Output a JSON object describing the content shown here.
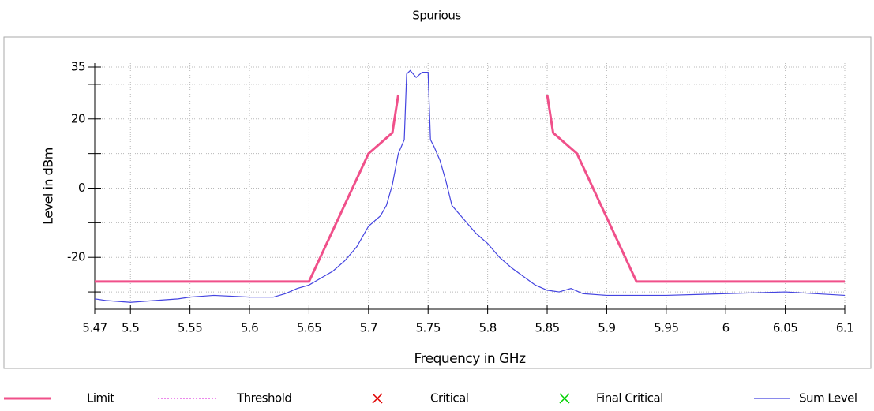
{
  "chart_data": {
    "type": "line",
    "title": "Spurious",
    "x_label": "Frequency in GHz",
    "y_label": "Level in dBm",
    "xlim": [
      5.47,
      6.1
    ],
    "xticks": [
      5.47,
      5.5,
      5.55,
      5.6,
      5.65,
      5.7,
      5.75,
      5.8,
      5.85,
      5.9,
      5.95,
      6,
      6.05,
      6.1
    ],
    "ylim": [
      -35,
      35
    ],
    "yticks": [
      35,
      20,
      0,
      -20
    ],
    "minor_yticks": [
      30,
      10,
      -10,
      -30
    ],
    "grid": true,
    "legend": "bottom",
    "series": [
      {
        "name": "Limit",
        "color": "#f0508a",
        "style": "solid",
        "x": [
          5.47,
          5.65,
          5.7,
          5.72,
          5.725,
          null,
          5.85,
          5.855,
          5.875,
          5.925,
          6.1
        ],
        "values": [
          -27,
          -27,
          10,
          16,
          27,
          null,
          27,
          16,
          10,
          -27,
          -27
        ]
      },
      {
        "name": "Threshold",
        "color": "#e040e0",
        "style": "dotted",
        "x": [],
        "values": []
      },
      {
        "name": "Critical",
        "color": "#e00000",
        "style": "marker",
        "x": [],
        "values": []
      },
      {
        "name": "Final Critical",
        "color": "#00d000",
        "style": "marker",
        "x": [],
        "values": []
      },
      {
        "name": "Sum Level",
        "color": "#4444e0",
        "style": "thin",
        "x": [
          5.47,
          5.48,
          5.5,
          5.52,
          5.54,
          5.55,
          5.57,
          5.6,
          5.62,
          5.63,
          5.64,
          5.65,
          5.66,
          5.67,
          5.68,
          5.69,
          5.7,
          5.71,
          5.715,
          5.72,
          5.725,
          5.73,
          5.732,
          5.735,
          5.74,
          5.745,
          5.75,
          5.752,
          5.755,
          5.76,
          5.765,
          5.77,
          5.78,
          5.79,
          5.8,
          5.81,
          5.82,
          5.83,
          5.84,
          5.85,
          5.86,
          5.87,
          5.88,
          5.9,
          5.95,
          6,
          6.05,
          6.1
        ],
        "values": [
          -32,
          -32.5,
          -33,
          -32.5,
          -32,
          -31.5,
          -31,
          -31.5,
          -31.5,
          -30.5,
          -29,
          -28,
          -26,
          -24,
          -21,
          -17,
          -11,
          -8,
          -5,
          1,
          10,
          14,
          33,
          34,
          32,
          33.5,
          33.5,
          14,
          12,
          8,
          2,
          -5,
          -9,
          -13,
          -16,
          -20,
          -23,
          -25.5,
          -28,
          -29.5,
          -30,
          -29,
          -30.5,
          -31,
          -31,
          -30.5,
          -30,
          -31
        ]
      }
    ]
  }
}
